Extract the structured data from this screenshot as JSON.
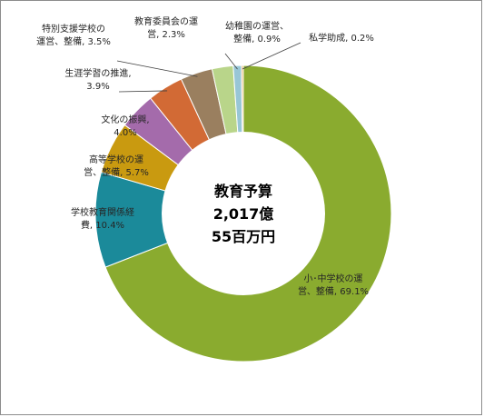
{
  "chart_data": {
    "type": "pie",
    "donut": true,
    "center_label": [
      "教育予算",
      "2,017億",
      "55百万円"
    ],
    "slices": [
      {
        "name": "小･中学校の運営、整備",
        "value": 69.1,
        "label": [
          "小･中学校の運",
          "営、整備, 69.1%"
        ],
        "color": "#8aab2f"
      },
      {
        "name": "学校教育関係経費",
        "value": 10.4,
        "label": [
          "学校教育関係経",
          "費, 10.4%"
        ],
        "color": "#1b8a9a"
      },
      {
        "name": "高等学校の運営、整備",
        "value": 5.7,
        "label": [
          "高等学校の運",
          "営、整備, 5.7%"
        ],
        "color": "#c99a10"
      },
      {
        "name": "文化の振興",
        "value": 4.0,
        "label": [
          "文化の振興,",
          "4.0%"
        ],
        "color": "#a46bab"
      },
      {
        "name": "生涯学習の推進",
        "value": 3.9,
        "label": [
          "生涯学習の推進,",
          "3.9%"
        ],
        "color": "#d26a35"
      },
      {
        "name": "特別支援学校の運営、整備",
        "value": 3.5,
        "label": [
          "特別支援学校の",
          "運営、整備, 3.5%"
        ],
        "color": "#9a7f5f"
      },
      {
        "name": "教育委員会の運営",
        "value": 2.3,
        "label": [
          "教育委員会の運",
          "営, 2.3%"
        ],
        "color": "#b9d58a"
      },
      {
        "name": "幼稚園の運営、整備",
        "value": 0.9,
        "label": [
          "幼稚園の運営、",
          "整備, 0.9%"
        ],
        "color": "#98c6d6"
      },
      {
        "name": "私学助成",
        "value": 0.2,
        "label": [
          "私学助成, 0.2%"
        ],
        "color": "#e8b46a"
      }
    ]
  }
}
